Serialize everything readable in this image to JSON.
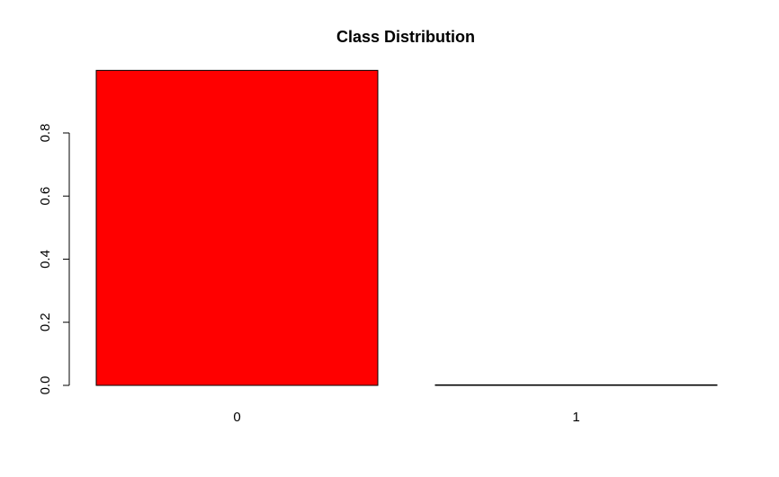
{
  "chart_data": {
    "type": "bar",
    "title": "Class Distribution",
    "xlabel": "",
    "ylabel": "",
    "categories": [
      "0",
      "1"
    ],
    "values": [
      0.9983,
      0.0017
    ],
    "ylim": [
      0,
      1
    ],
    "y_ticks": [
      "0.0",
      "0.2",
      "0.4",
      "0.6",
      "0.8"
    ],
    "bar_colors": [
      "#ff0000",
      "#000000"
    ],
    "bar_border_color": "#000000",
    "grid": false,
    "legend": "none"
  }
}
